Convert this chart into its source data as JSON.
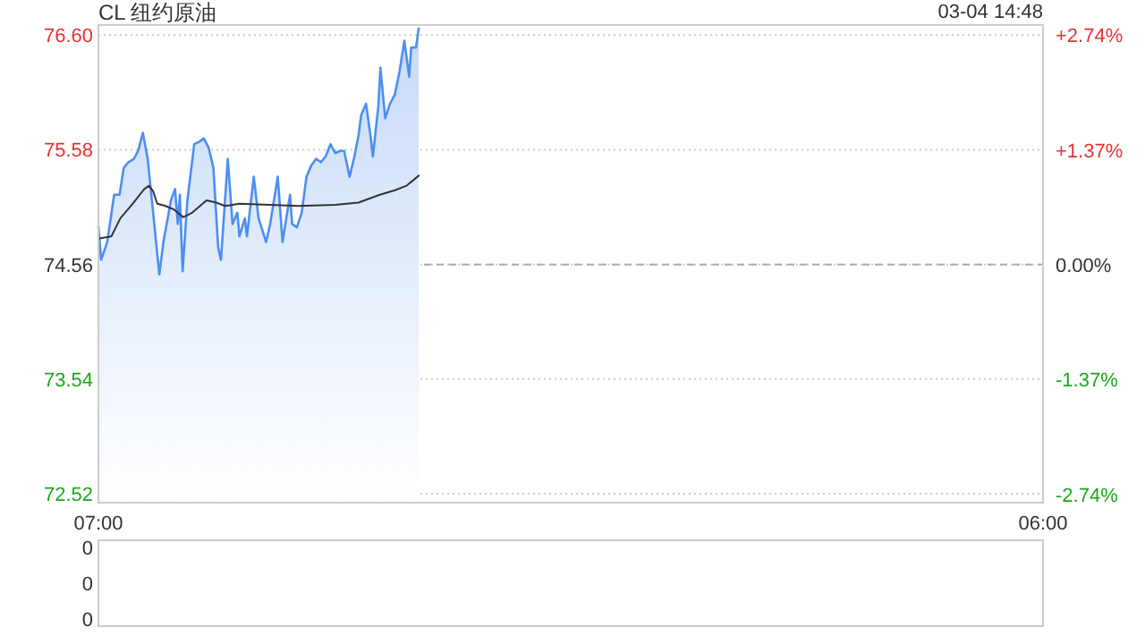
{
  "chart_data": [
    {
      "type": "area",
      "title": "CL 纽约原油",
      "annotations": [
        "03-04 14:48"
      ],
      "xlim": [
        "--03-04T07:00",
        "--03-05T06:00"
      ],
      "xticks": [
        {
          "value": "--03-04T07:00",
          "label": "07:00"
        },
        {
          "value": "--03-05T06:00",
          "label": "06:00"
        }
      ],
      "ylim": [
        72.44,
        76.69
      ],
      "yticks": [
        {
          "value": 72.52,
          "label": "72.52"
        },
        {
          "value": 73.54,
          "label": "73.54"
        },
        {
          "value": 74.56,
          "label": "74.56"
        },
        {
          "value": 75.58,
          "label": "75.58"
        },
        {
          "value": 76.6,
          "label": "76.60"
        }
      ],
      "y2lim": [
        -2.84,
        2.86
      ],
      "y2ticks": [
        {
          "value": -2.74,
          "label": "-2.74%"
        },
        {
          "value": -1.37,
          "label": "-1.37%"
        },
        {
          "value": 0,
          "label": "0.00%"
        },
        {
          "value": 1.37,
          "label": "+1.37%"
        },
        {
          "value": 2.74,
          "label": "+2.74%"
        }
      ],
      "grid": "y",
      "ref_lines": [
        {
          "axis": "y",
          "value": 74.56,
          "color": "#aaaaaa",
          "line_style": "dashed"
        }
      ],
      "series": [
        {
          "color": "#4d8ef0",
          "x": [
            "--03-04T07:00",
            "--03-04T07:04",
            "--03-04T07:13",
            "--03-04T07:23",
            "--03-04T07:31",
            "--03-04T07:37",
            "--03-04T07:44",
            "--03-04T07:52",
            "--03-04T07:58",
            "--03-04T08:05",
            "--03-04T08:12",
            "--03-04T08:20",
            "--03-04T08:26",
            "--03-04T08:29",
            "--03-04T08:35",
            "--03-04T08:46",
            "--03-04T08:52",
            "--03-04T08:56",
            "--03-04T08:59",
            "--03-04T09:03",
            "--03-04T09:10",
            "--03-04T09:20",
            "--03-04T09:27",
            "--03-04T09:34",
            "--03-04T09:41",
            "--03-04T09:48",
            "--03-04T09:55",
            "--03-04T09:59",
            "--03-04T10:05",
            "--03-04T10:09",
            "--03-04T10:16",
            "--03-04T10:23",
            "--03-04T10:26",
            "--03-04T10:34",
            "--03-04T10:37",
            "--03-04T10:47",
            "--03-04T10:54",
            "--03-04T11:05",
            "--03-04T11:11",
            "--03-04T11:22",
            "--03-04T11:29",
            "--03-04T11:40",
            "--03-04T11:43",
            "--03-04T11:50",
            "--03-04T11:57",
            "--03-04T12:04",
            "--03-04T12:11",
            "--03-04T12:18",
            "--03-04T12:25",
            "--03-04T12:32",
            "--03-04T12:39",
            "--03-04T12:46",
            "--03-04T12:53",
            "--03-04T12:59",
            "--03-04T13:07",
            "--03-04T13:14",
            "--03-04T13:20",
            "--03-04T13:24",
            "--03-04T13:31",
            "--03-04T13:38",
            "--03-04T13:41",
            "--03-04T13:49",
            "--03-04T13:52",
            "--03-04T13:59",
            "--03-04T14:06",
            "--03-04T14:13",
            "--03-04T14:20",
            "--03-04T14:27",
            "--03-04T14:34",
            "--03-04T14:37",
            "--03-04T14:44",
            "--03-04T14:48"
          ],
          "values": [
            74.9,
            74.6,
            74.76,
            75.18,
            75.18,
            75.42,
            75.47,
            75.5,
            75.57,
            75.73,
            75.5,
            75.02,
            74.65,
            74.47,
            74.76,
            75.13,
            75.23,
            74.92,
            75.18,
            74.5,
            75.13,
            75.63,
            75.65,
            75.68,
            75.6,
            75.42,
            74.71,
            74.6,
            75.13,
            75.5,
            74.92,
            75.02,
            74.81,
            74.97,
            74.81,
            75.34,
            74.97,
            74.76,
            74.92,
            75.34,
            74.76,
            75.18,
            74.92,
            74.89,
            75.02,
            75.34,
            75.44,
            75.5,
            75.47,
            75.52,
            75.63,
            75.55,
            75.57,
            75.57,
            75.34,
            75.52,
            75.71,
            75.89,
            75.99,
            75.68,
            75.52,
            75.97,
            76.31,
            75.86,
            75.99,
            76.07,
            76.28,
            76.55,
            76.23,
            76.49,
            76.49,
            76.66
          ]
        },
        {
          "type": "line",
          "color": "#333333",
          "x": [
            "--03-04T07:00",
            "--03-04T07:19",
            "--03-04T07:32",
            "--03-04T07:50",
            "--03-04T08:07",
            "--03-04T08:14",
            "--03-04T08:20",
            "--03-04T08:26",
            "--03-04T08:38",
            "--03-04T08:50",
            "--03-04T09:04",
            "--03-04T09:17",
            "--03-04T09:38",
            "--03-04T09:52",
            "--03-04T10:05",
            "--03-04T10:26",
            "--03-04T11:10",
            "--03-04T11:53",
            "--03-04T12:46",
            "--03-04T13:20",
            "--03-04T13:51",
            "--03-04T14:13",
            "--03-04T14:30",
            "--03-04T14:48"
          ],
          "values": [
            74.79,
            74.81,
            74.97,
            75.1,
            75.23,
            75.26,
            75.21,
            75.1,
            75.08,
            75.05,
            74.98,
            75.02,
            75.13,
            75.11,
            75.08,
            75.1,
            75.09,
            75.08,
            75.09,
            75.11,
            75.18,
            75.22,
            75.26,
            75.35
          ]
        }
      ]
    },
    {
      "type": "other",
      "annotations": [
        "0",
        "0",
        "0"
      ]
    }
  ]
}
